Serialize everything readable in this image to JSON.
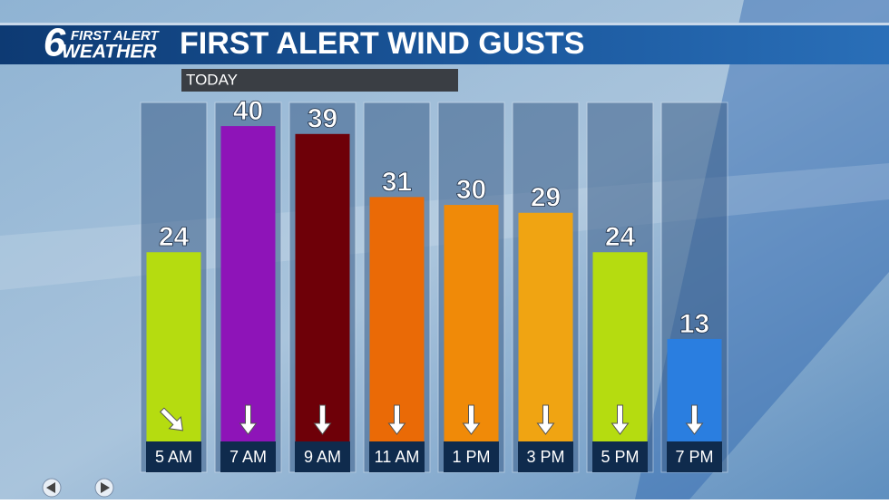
{
  "chart_data": {
    "type": "bar",
    "brand": {
      "top": "FIRST ALERT",
      "bottom": "WEATHER",
      "channel": "6"
    },
    "title": "FIRST ALERT WIND GUSTS",
    "subtitle": "TODAY",
    "categories": [
      "5 AM",
      "7 AM",
      "9 AM",
      "11 AM",
      "1 PM",
      "3 PM",
      "5 PM",
      "7 PM"
    ],
    "values": [
      24,
      40,
      39,
      31,
      30,
      29,
      24,
      13
    ],
    "colors": [
      "#b5dc10",
      "#8e14b8",
      "#6e0008",
      "#ea6a06",
      "#f08a08",
      "#f0a412",
      "#b5dc10",
      "#2a7ee0"
    ],
    "ylim": [
      0,
      43
    ]
  }
}
